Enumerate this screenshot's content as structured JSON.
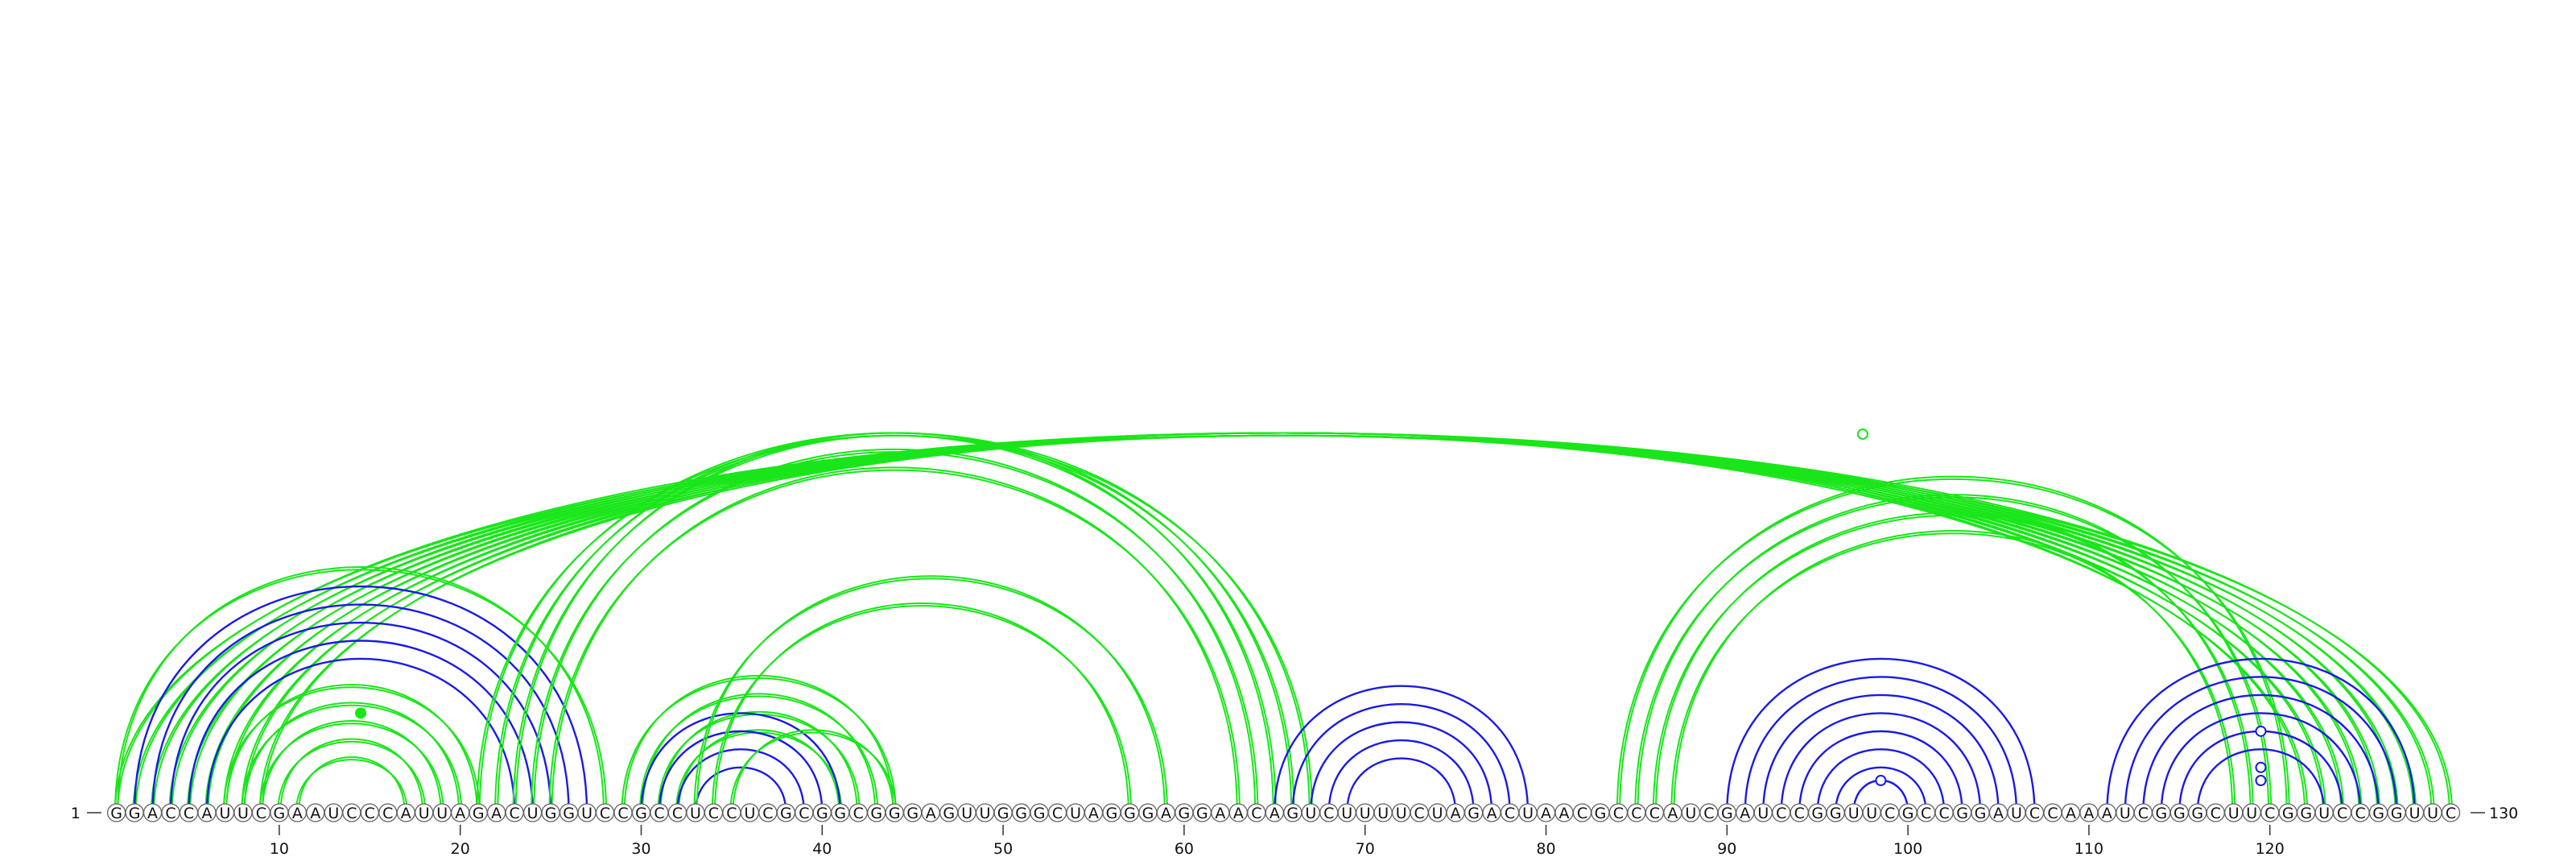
{
  "sequence": "GGACCAUUCGAAUCCCAUUAGACUGGUCCGCCUCCUCGCGGCGGGAGUUGGGCUAGGGAGGAACAGUCUUUUCUAGACUAACGCCCAUCGAUCCGGUUCGCCGGAUCCAAAUCGGGCUUCGGUCCGGUUC",
  "start_label": "1",
  "end_label": "130",
  "axis_ticks": [
    "10",
    "20",
    "30",
    "40",
    "50",
    "60",
    "70",
    "80",
    "90",
    "100",
    "110",
    "120"
  ],
  "colors": {
    "green": "#19e619",
    "blue": "#1a1ae6",
    "circle_stroke": "#606060",
    "text": "#111111"
  },
  "arc_groups": [
    {
      "color": "green",
      "double": true,
      "pairs": [
        [
          1,
          130
        ],
        [
          2,
          129
        ],
        [
          3,
          128
        ],
        [
          4,
          127
        ],
        [
          5,
          126
        ],
        [
          6,
          125
        ],
        [
          7,
          124
        ],
        [
          8,
          123
        ],
        [
          9,
          122
        ]
      ]
    },
    {
      "color": "blue",
      "double": false,
      "pairs": [
        [
          2,
          27
        ],
        [
          3,
          26
        ],
        [
          4,
          25
        ],
        [
          5,
          24
        ],
        [
          6,
          23
        ]
      ]
    },
    {
      "color": "green",
      "double": true,
      "pairs": [
        [
          1,
          28
        ],
        [
          7,
          21
        ],
        [
          8,
          20
        ],
        [
          9,
          19
        ],
        [
          10,
          18
        ],
        [
          11,
          17
        ]
      ]
    },
    {
      "color": "green",
      "double": true,
      "pairs": [
        [
          21,
          67
        ],
        [
          22,
          66
        ],
        [
          23,
          65
        ],
        [
          24,
          64
        ],
        [
          25,
          63
        ]
      ]
    },
    {
      "color": "green",
      "double": true,
      "pairs": [
        [
          29,
          44
        ],
        [
          30,
          43
        ],
        [
          31,
          42
        ],
        [
          32,
          41
        ]
      ]
    },
    {
      "color": "blue",
      "double": false,
      "pairs": [
        [
          30,
          41
        ],
        [
          31,
          40
        ],
        [
          32,
          39
        ],
        [
          33,
          38
        ]
      ]
    },
    {
      "color": "green",
      "double": true,
      "pairs": [
        [
          33,
          59
        ],
        [
          34,
          57
        ],
        [
          35,
          44
        ]
      ]
    },
    {
      "color": "blue",
      "double": false,
      "pairs": [
        [
          65,
          79
        ],
        [
          66,
          78
        ],
        [
          67,
          77
        ],
        [
          68,
          76
        ],
        [
          69,
          75
        ]
      ]
    },
    {
      "color": "green",
      "double": true,
      "pairs": [
        [
          84,
          121
        ],
        [
          85,
          120
        ],
        [
          86,
          119
        ],
        [
          87,
          118
        ]
      ]
    },
    {
      "color": "blue",
      "double": false,
      "pairs": [
        [
          90,
          107
        ],
        [
          91,
          106
        ],
        [
          92,
          105
        ],
        [
          93,
          104
        ],
        [
          94,
          103
        ],
        [
          95,
          102
        ],
        [
          96,
          101
        ],
        [
          97,
          100
        ]
      ]
    },
    {
      "color": "blue",
      "double": false,
      "pairs": [
        [
          111,
          128
        ],
        [
          112,
          127
        ],
        [
          113,
          126
        ],
        [
          114,
          125
        ],
        [
          115,
          124
        ],
        [
          116,
          123
        ]
      ]
    }
  ],
  "markers": [
    {
      "i": 65,
      "j": 130,
      "color": "green",
      "filled": false
    },
    {
      "i": 9,
      "j": 20,
      "color": "green",
      "filled": true
    },
    {
      "i": 115,
      "j": 124,
      "color": "blue",
      "filled": false
    },
    {
      "i": 117,
      "j": 122,
      "color": "blue",
      "filled": false
    },
    {
      "i": 118,
      "j": 121,
      "color": "blue",
      "filled": false
    },
    {
      "i": 97,
      "j": 100,
      "color": "blue",
      "filled": false
    }
  ]
}
